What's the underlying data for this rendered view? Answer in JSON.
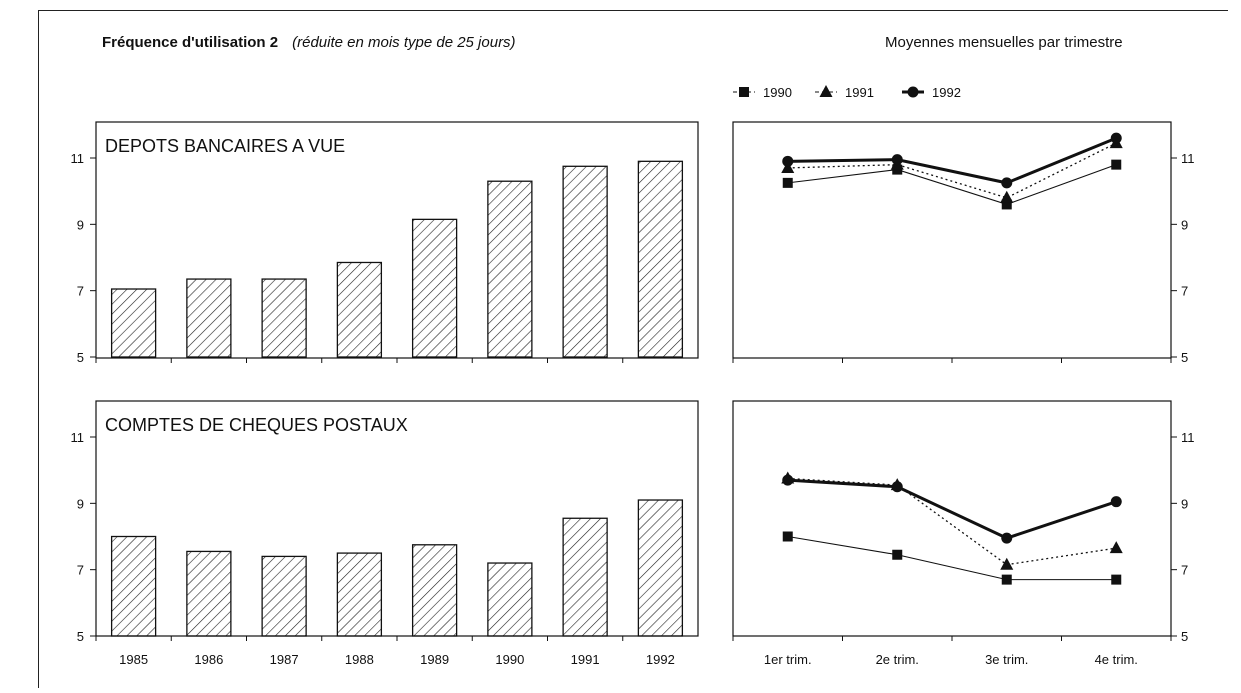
{
  "header": {
    "title": "Fréquence d'utilisation 2",
    "subtitle": "(réduite en mois type de 25 jours)",
    "right_title": "Moyennes mensuelles par trimestre"
  },
  "colors": {
    "ink": "#111111",
    "background": "#ffffff"
  },
  "chart_data": [
    {
      "type": "bar",
      "title": "DEPOTS BANCAIRES A VUE",
      "categories": [
        "1985",
        "1986",
        "1987",
        "1988",
        "1989",
        "1990",
        "1991",
        "1992"
      ],
      "values": [
        7.05,
        7.35,
        7.35,
        7.85,
        9.15,
        10.3,
        10.75,
        10.9
      ],
      "ylim": [
        5,
        12
      ],
      "yticks": [
        "5",
        "7",
        "9",
        "11"
      ],
      "bar_fill": "hatched",
      "xlabel": "",
      "ylabel": "",
      "grid": false
    },
    {
      "type": "line",
      "categories": [
        "1er trim.",
        "2e trim.",
        "3e trim.",
        "4e trim."
      ],
      "series": [
        {
          "name": "1990",
          "marker": "square",
          "style": "solid-thin",
          "values": [
            10.25,
            10.65,
            9.6,
            10.8
          ]
        },
        {
          "name": "1991",
          "marker": "triangle",
          "style": "dotted",
          "values": [
            10.7,
            10.8,
            9.8,
            11.45
          ]
        },
        {
          "name": "1992",
          "marker": "circle",
          "style": "solid-thick",
          "values": [
            10.9,
            10.95,
            10.25,
            11.6
          ]
        }
      ],
      "ylim": [
        5,
        12
      ],
      "yticks": [
        "5",
        "7",
        "9",
        "11"
      ],
      "legend": "top-left",
      "xlabel": "",
      "ylabel": "",
      "grid": false
    },
    {
      "type": "bar",
      "title": "COMPTES DE CHEQUES POSTAUX",
      "categories": [
        "1985",
        "1986",
        "1987",
        "1988",
        "1989",
        "1990",
        "1991",
        "1992"
      ],
      "values": [
        8.0,
        7.55,
        7.4,
        7.5,
        7.75,
        7.2,
        8.55,
        9.1
      ],
      "ylim": [
        5,
        12
      ],
      "yticks": [
        "5",
        "7",
        "9",
        "11"
      ],
      "bar_fill": "hatched",
      "xlabel": "",
      "ylabel": "",
      "grid": false
    },
    {
      "type": "line",
      "categories": [
        "1er trim.",
        "2e trim.",
        "3e trim.",
        "4e trim."
      ],
      "series": [
        {
          "name": "1990",
          "marker": "square",
          "style": "solid-thin",
          "values": [
            8.0,
            7.45,
            6.7,
            6.7
          ]
        },
        {
          "name": "1991",
          "marker": "triangle",
          "style": "dotted",
          "values": [
            9.75,
            9.55,
            7.15,
            7.65
          ]
        },
        {
          "name": "1992",
          "marker": "circle",
          "style": "solid-thick",
          "values": [
            9.7,
            9.5,
            7.95,
            9.05
          ]
        }
      ],
      "ylim": [
        5,
        12
      ],
      "yticks": [
        "5",
        "7",
        "9",
        "11"
      ],
      "xlabel": "",
      "ylabel": "",
      "grid": false
    }
  ]
}
